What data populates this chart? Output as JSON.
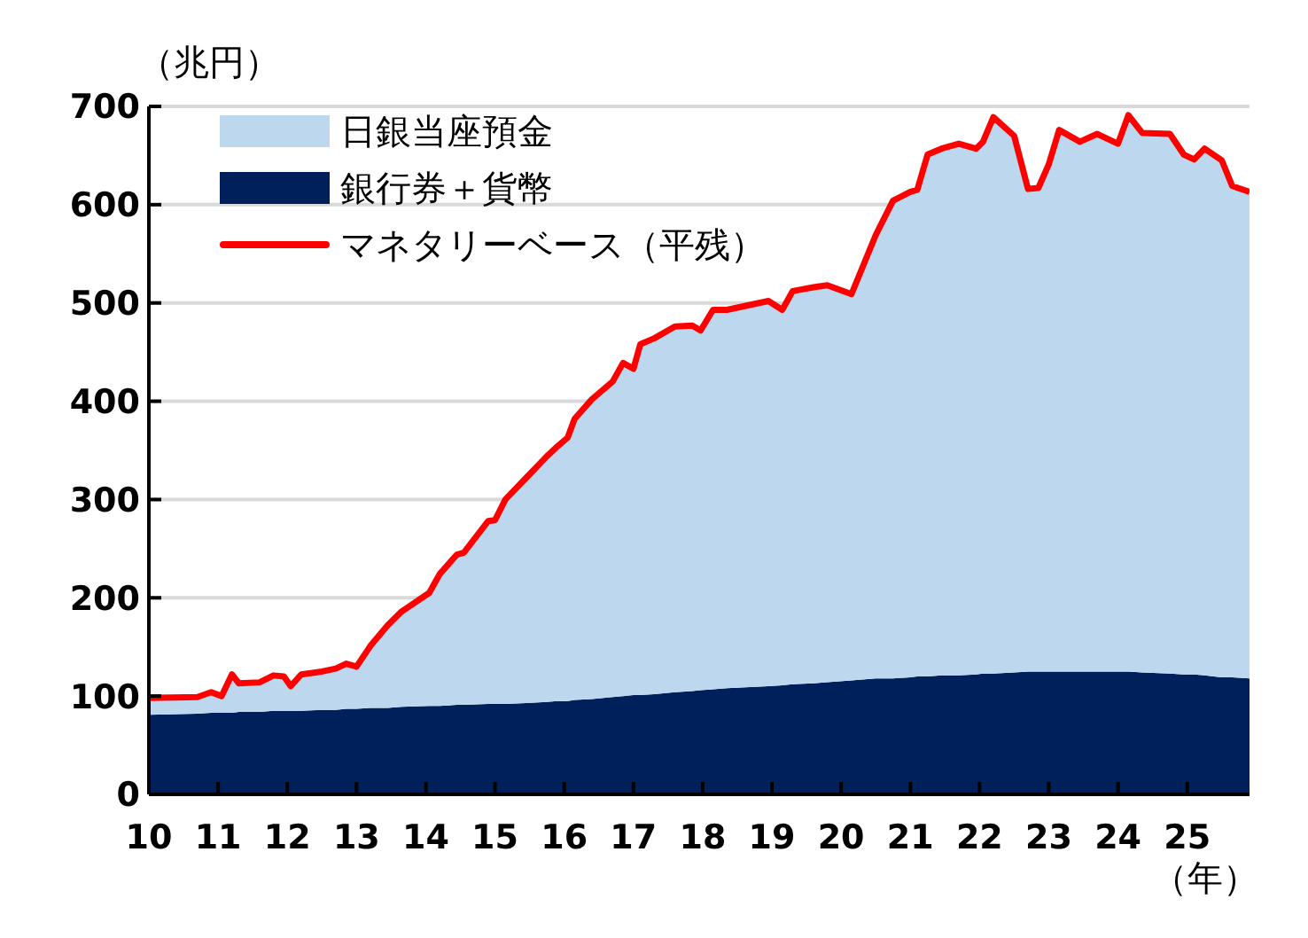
{
  "chart_data": {
    "type": "area",
    "stacked": true,
    "ylabel": "（兆円）",
    "xlabel": "（年）",
    "x": [
      2010.0,
      2010.7,
      2010.9,
      2011.05,
      2011.2,
      2011.3,
      2011.6,
      2011.8,
      2011.95,
      2012.05,
      2012.2,
      2012.5,
      2012.7,
      2012.85,
      2013.0,
      2013.2,
      2013.45,
      2013.65,
      2014.05,
      2014.2,
      2014.45,
      2014.55,
      2014.9,
      2015.0,
      2015.15,
      2015.45,
      2015.75,
      2015.9,
      2016.05,
      2016.15,
      2016.4,
      2016.7,
      2016.85,
      2017.0,
      2017.1,
      2017.3,
      2017.6,
      2017.85,
      2017.97,
      2018.15,
      2018.35,
      2018.95,
      2019.15,
      2019.3,
      2019.6,
      2019.8,
      2020.15,
      2020.5,
      2020.75,
      2021.0,
      2021.1,
      2021.25,
      2021.45,
      2021.7,
      2021.95,
      2022.05,
      2022.2,
      2022.5,
      2022.7,
      2022.85,
      2023.0,
      2023.15,
      2023.45,
      2023.7,
      2024.0,
      2024.15,
      2024.35,
      2024.75,
      2024.95,
      2025.1,
      2025.25,
      2025.5,
      2025.65,
      2025.9
    ],
    "series": [
      {
        "name": "銀行券＋貨幣",
        "color": "#00205b",
        "values": [
          81,
          82,
          83,
          83,
          83,
          84,
          84,
          85,
          85,
          85,
          85,
          86,
          86,
          87,
          87,
          88,
          88,
          89,
          90,
          90,
          91,
          91,
          92,
          92,
          92,
          93,
          94,
          95,
          95,
          96,
          97,
          99,
          100,
          101,
          101,
          102,
          104,
          105,
          106,
          107,
          108,
          110,
          111,
          112,
          113,
          114,
          116,
          118,
          118,
          119,
          120,
          120,
          121,
          121,
          122,
          123,
          123,
          124,
          125,
          125,
          125,
          125,
          125,
          125,
          125,
          125,
          124,
          123,
          122,
          122,
          121,
          119,
          119,
          118
        ]
      },
      {
        "name": "日銀当座預金",
        "color": "#bdd7ee",
        "values": [
          17,
          17,
          21,
          17,
          39,
          29,
          30,
          36,
          35,
          25,
          37,
          39,
          42,
          46,
          43,
          63,
          84,
          97,
          115,
          134,
          153,
          155,
          186,
          187,
          208,
          229,
          250,
          259,
          268,
          286,
          305,
          321,
          339,
          332,
          357,
          362,
          372,
          372,
          366,
          386,
          385,
          392,
          382,
          400,
          403,
          404,
          393,
          451,
          486,
          494,
          495,
          531,
          536,
          541,
          535,
          541,
          566,
          546,
          491,
          492,
          516,
          551,
          539,
          547,
          537,
          566,
          549,
          549,
          529,
          524,
          536,
          526,
          500,
          495
        ]
      },
      {
        "name": "マネタリーベース（平残）",
        "type": "line",
        "color": "#ff0000",
        "values": [
          98,
          99,
          104,
          100,
          122,
          113,
          114,
          121,
          120,
          110,
          122,
          125,
          128,
          133,
          130,
          151,
          172,
          186,
          205,
          224,
          244,
          246,
          278,
          279,
          300,
          322,
          344,
          354,
          363,
          382,
          402,
          420,
          439,
          433,
          458,
          464,
          476,
          477,
          472,
          493,
          493,
          502,
          493,
          512,
          516,
          518,
          509,
          569,
          604,
          613,
          615,
          651,
          657,
          662,
          657,
          664,
          689,
          670,
          616,
          617,
          641,
          676,
          664,
          672,
          662,
          691,
          673,
          672,
          651,
          646,
          657,
          645,
          619,
          613
        ]
      }
    ],
    "xlim": [
      2010,
      2025.9
    ],
    "xticks": [
      {
        "value": 2010,
        "label": "10"
      },
      {
        "value": 2011,
        "label": "11"
      },
      {
        "value": 2012,
        "label": "12"
      },
      {
        "value": 2013,
        "label": "13"
      },
      {
        "value": 2014,
        "label": "14"
      },
      {
        "value": 2015,
        "label": "15"
      },
      {
        "value": 2016,
        "label": "16"
      },
      {
        "value": 2017,
        "label": "17"
      },
      {
        "value": 2018,
        "label": "18"
      },
      {
        "value": 2019,
        "label": "19"
      },
      {
        "value": 2020,
        "label": "20"
      },
      {
        "value": 2021,
        "label": "21"
      },
      {
        "value": 2022,
        "label": "22"
      },
      {
        "value": 2023,
        "label": "23"
      },
      {
        "value": 2024,
        "label": "24"
      },
      {
        "value": 2025,
        "label": "25"
      }
    ],
    "ylim": [
      0,
      700
    ],
    "yticks": [
      0,
      100,
      200,
      300,
      400,
      500,
      600,
      700
    ],
    "grid": "y",
    "legend": "top left"
  }
}
